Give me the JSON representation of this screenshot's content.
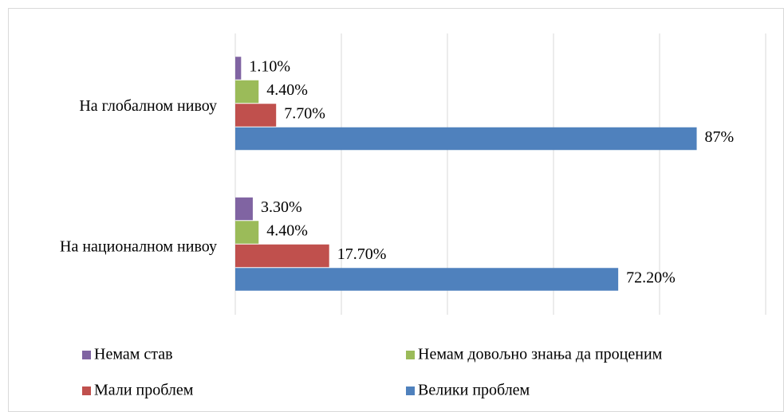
{
  "chart_data": {
    "type": "hbar",
    "categories": [
      "На глобалном нивоу",
      "На националном нивоу"
    ],
    "series": [
      {
        "name": "Немам став",
        "color": "#8064a2",
        "values": [
          1.1,
          3.3
        ],
        "value_labels": [
          "1.10%",
          "3.30%"
        ]
      },
      {
        "name": "Немам довољно знања да проценим",
        "color": "#9bbb59",
        "values": [
          4.4,
          4.4
        ],
        "value_labels": [
          "4.40%",
          "4.40%"
        ]
      },
      {
        "name": "Мали проблем",
        "color": "#c0504d",
        "values": [
          7.7,
          17.7
        ],
        "value_labels": [
          "7.70%",
          "17.70%"
        ]
      },
      {
        "name": "Велики проблем",
        "color": "#4f81bd",
        "values": [
          87,
          72.2
        ],
        "value_labels": [
          "87%",
          "72.20%"
        ]
      }
    ],
    "xlim": [
      0,
      100
    ],
    "xticks": [
      0,
      20,
      40,
      60,
      80,
      100
    ],
    "grid": true
  }
}
